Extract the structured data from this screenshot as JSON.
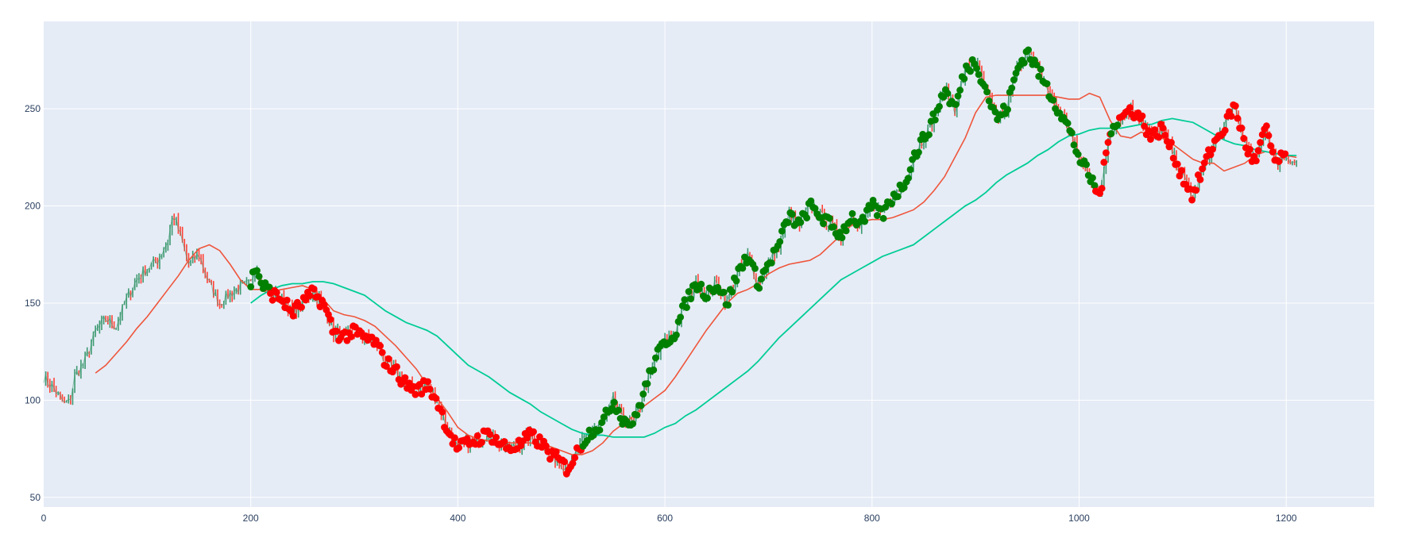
{
  "chart_data": {
    "type": "line",
    "title": "",
    "xlabel": "",
    "ylabel": "",
    "xlim": [
      0,
      1285
    ],
    "ylim": [
      45,
      295
    ],
    "x_ticks": [
      0,
      200,
      400,
      600,
      800,
      1000,
      1200
    ],
    "y_ticks": [
      50,
      100,
      150,
      200,
      250
    ],
    "grid": true,
    "legend": "none",
    "colors": {
      "plot_bg": "#e5ecf6",
      "grid": "#ffffff",
      "price_up": "#3d9970",
      "price_down": "#ff4136",
      "ma_short": "#ef553b",
      "ma_long": "#00cc96",
      "signal_up": "#008000",
      "signal_down": "#ff0000"
    },
    "series": [
      {
        "role": "price",
        "x": [
          0,
          10,
          20,
          25,
          30,
          40,
          50,
          60,
          70,
          80,
          90,
          100,
          110,
          120,
          125,
          130,
          140,
          150,
          160,
          170,
          180,
          190,
          200,
          205,
          210,
          220,
          230,
          240,
          250,
          260,
          270,
          280,
          290,
          300,
          310,
          320,
          330,
          340,
          350,
          360,
          370,
          380,
          390,
          400,
          410,
          420,
          430,
          440,
          450,
          460,
          470,
          480,
          490,
          500,
          505,
          510,
          520,
          530,
          540,
          550,
          560,
          570,
          580,
          590,
          600,
          610,
          620,
          630,
          640,
          650,
          660,
          670,
          680,
          690,
          700,
          710,
          720,
          730,
          740,
          750,
          760,
          770,
          780,
          790,
          800,
          810,
          820,
          830,
          840,
          850,
          860,
          870,
          880,
          890,
          900,
          910,
          920,
          930,
          940,
          950,
          960,
          970,
          980,
          990,
          1000,
          1010,
          1020,
          1030,
          1040,
          1050,
          1060,
          1070,
          1080,
          1090,
          1100,
          1110,
          1120,
          1130,
          1140,
          1150,
          1160,
          1170,
          1180,
          1190,
          1200,
          1210
        ],
        "y": [
          112,
          106,
          98,
          99,
          112,
          120,
          135,
          142,
          138,
          152,
          162,
          168,
          172,
          182,
          196,
          188,
          170,
          175,
          160,
          150,
          155,
          158,
          160,
          170,
          160,
          155,
          152,
          145,
          150,
          155,
          150,
          135,
          133,
          135,
          132,
          130,
          120,
          115,
          108,
          105,
          108,
          100,
          85,
          75,
          78,
          80,
          83,
          78,
          75,
          77,
          82,
          78,
          72,
          68,
          65,
          68,
          78,
          85,
          88,
          100,
          90,
          88,
          105,
          120,
          130,
          135,
          150,
          160,
          155,
          160,
          150,
          165,
          175,
          160,
          170,
          180,
          195,
          190,
          200,
          195,
          190,
          185,
          195,
          190,
          200,
          195,
          205,
          210,
          225,
          235,
          245,
          260,
          250,
          270,
          275,
          260,
          245,
          250,
          270,
          280,
          270,
          260,
          250,
          240,
          225,
          215,
          205,
          240,
          245,
          250,
          245,
          235,
          240,
          228,
          215,
          205,
          220,
          232,
          240,
          252,
          232,
          222,
          240,
          222,
          226,
          222
        ]
      },
      {
        "role": "moving_average_short",
        "x": [
          50,
          60,
          70,
          80,
          90,
          100,
          110,
          120,
          130,
          140,
          150,
          155,
          160,
          170,
          180,
          190,
          200,
          210,
          220,
          230,
          240,
          250,
          260,
          270,
          280,
          290,
          300,
          310,
          320,
          330,
          340,
          350,
          360,
          370,
          380,
          390,
          400,
          410,
          420,
          430,
          440,
          450,
          460,
          470,
          480,
          490,
          500,
          510,
          520,
          530,
          540,
          550,
          560,
          570,
          580,
          590,
          600,
          610,
          620,
          630,
          640,
          650,
          660,
          670,
          680,
          690,
          700,
          710,
          720,
          730,
          740,
          750,
          760,
          770,
          780,
          790,
          800,
          810,
          820,
          830,
          840,
          850,
          860,
          870,
          880,
          890,
          900,
          910,
          920,
          930,
          940,
          950,
          960,
          970,
          980,
          990,
          1000,
          1010,
          1020,
          1030,
          1040,
          1050,
          1060,
          1070,
          1080,
          1090,
          1100,
          1110,
          1120,
          1130,
          1140,
          1150,
          1160,
          1170,
          1180,
          1190,
          1200,
          1210
        ],
        "y": [
          114,
          118,
          124,
          130,
          137,
          143,
          150,
          157,
          164,
          172,
          178,
          179,
          180,
          177,
          170,
          162,
          157,
          157,
          156,
          157,
          158,
          159,
          157,
          152,
          146,
          144,
          143,
          141,
          138,
          133,
          128,
          122,
          116,
          108,
          101,
          94,
          86,
          82,
          80,
          79,
          79,
          78,
          78,
          78,
          77,
          76,
          74,
          72,
          72,
          74,
          78,
          84,
          88,
          92,
          97,
          101,
          105,
          112,
          120,
          128,
          136,
          143,
          150,
          155,
          157,
          160,
          165,
          168,
          170,
          171,
          172,
          175,
          180,
          185,
          190,
          192,
          193,
          193,
          194,
          196,
          198,
          202,
          208,
          215,
          225,
          235,
          248,
          256,
          257,
          257,
          257,
          257,
          257,
          257,
          256,
          255,
          255,
          258,
          256,
          244,
          236,
          235,
          238,
          236,
          235,
          232,
          228,
          224,
          222,
          222,
          218,
          220,
          222,
          226,
          228,
          227,
          226,
          225
        ]
      },
      {
        "role": "moving_average_long",
        "x": [
          200,
          210,
          220,
          230,
          240,
          250,
          260,
          270,
          280,
          290,
          300,
          310,
          320,
          330,
          340,
          350,
          360,
          370,
          380,
          390,
          400,
          410,
          420,
          430,
          440,
          450,
          460,
          470,
          480,
          490,
          500,
          510,
          520,
          530,
          540,
          550,
          560,
          570,
          580,
          590,
          600,
          610,
          620,
          630,
          640,
          650,
          660,
          670,
          680,
          690,
          700,
          710,
          720,
          730,
          740,
          750,
          760,
          770,
          780,
          790,
          800,
          810,
          820,
          830,
          840,
          850,
          860,
          870,
          880,
          890,
          900,
          910,
          920,
          930,
          940,
          950,
          960,
          970,
          980,
          990,
          1000,
          1010,
          1020,
          1030,
          1040,
          1050,
          1060,
          1070,
          1080,
          1090,
          1100,
          1110,
          1120,
          1130,
          1140,
          1150,
          1160,
          1170,
          1180,
          1190,
          1200,
          1210
        ],
        "y": [
          150,
          154,
          157,
          159,
          160,
          160,
          161,
          161,
          160,
          158,
          156,
          154,
          150,
          146,
          143,
          140,
          138,
          136,
          133,
          128,
          123,
          118,
          115,
          112,
          108,
          104,
          101,
          98,
          94,
          91,
          88,
          85,
          83,
          82,
          82,
          81,
          81,
          81,
          81,
          83,
          86,
          88,
          92,
          95,
          99,
          103,
          107,
          111,
          115,
          120,
          126,
          132,
          137,
          142,
          147,
          152,
          157,
          162,
          165,
          168,
          171,
          174,
          176,
          178,
          180,
          184,
          188,
          192,
          196,
          200,
          203,
          207,
          212,
          216,
          219,
          222,
          226,
          229,
          233,
          236,
          237,
          239,
          240,
          240,
          240,
          241,
          242,
          242,
          244,
          245,
          244,
          243,
          240,
          237,
          234,
          232,
          231,
          229,
          228,
          227,
          226,
          226
        ]
      }
    ],
    "signals": [
      {
        "label": "buy",
        "x_range": [
          200,
          218
        ]
      },
      {
        "label": "sell",
        "x_range": [
          219,
          520
        ]
      },
      {
        "label": "buy",
        "x_range": [
          521,
          548
        ]
      },
      {
        "label": "buy",
        "x_range": [
          549,
          1015
        ]
      },
      {
        "label": "sell",
        "x_range": [
          1016,
          1030
        ]
      },
      {
        "label": "buy",
        "x_range": [
          1031,
          1038
        ]
      },
      {
        "label": "sell",
        "x_range": [
          1039,
          1200
        ]
      }
    ]
  }
}
